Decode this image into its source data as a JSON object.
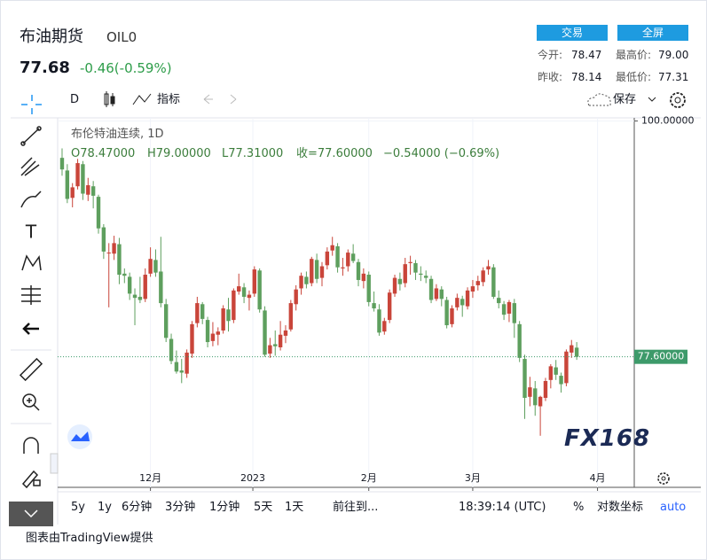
{
  "header": {
    "title": "布油期货",
    "symbol": "OIL0",
    "price": "77.68",
    "change": "-0.46(-0.59%)",
    "buttons": [
      "交易",
      "全屏"
    ],
    "stats": [
      [
        "今开:",
        "78.47"
      ],
      [
        "最高价:",
        "79.00"
      ],
      [
        "昨收:",
        "78.14"
      ],
      [
        "最低价:",
        "77.31"
      ]
    ]
  },
  "toolbar": {
    "interval": "D",
    "indicators": "指标",
    "save": "保存"
  },
  "legend": {
    "title": "布伦特油连续, 1D",
    "open": "O78.47000",
    "high": "H79.00000",
    "low": "L77.31000",
    "close": "收=77.60000",
    "change": "−0.54000 (−0.69%)"
  },
  "chart_data": {
    "type": "candlestick",
    "up_color": "#c9453a",
    "down_color": "#5e9f5e",
    "ylim": [
      65.2,
      100.3
    ],
    "yticks": [
      {
        "value": 100,
        "label": "100.00000"
      }
    ],
    "xlim": [
      -0.85,
      110.07
    ],
    "xticks": [
      {
        "value": 17,
        "label": "12月"
      },
      {
        "value": 36.7,
        "label": "2023"
      },
      {
        "value": 59,
        "label": "2月"
      },
      {
        "value": 79,
        "label": "3月"
      },
      {
        "value": 103,
        "label": "4月"
      }
    ],
    "price_line": {
      "value": 77.6,
      "label": "77.60000",
      "color": "#3d9a6a"
    },
    "ohlc": [
      [
        96.5,
        97.4,
        94.8,
        95.4
      ],
      [
        95.3,
        95.9,
        92.2,
        92.6
      ],
      [
        92.7,
        94.1,
        91.8,
        93.7
      ],
      [
        93.8,
        96.4,
        93.5,
        96.0
      ],
      [
        95.9,
        96.2,
        92.5,
        93.1
      ],
      [
        93.0,
        94.6,
        92.4,
        93.9
      ],
      [
        93.8,
        94.3,
        91.7,
        92.9
      ],
      [
        92.8,
        93.0,
        89.3,
        89.8
      ],
      [
        89.9,
        90.2,
        86.9,
        87.6
      ],
      [
        87.5,
        88.4,
        82.3,
        87.5
      ],
      [
        87.4,
        89.1,
        86.8,
        88.4
      ],
      [
        88.3,
        88.9,
        84.5,
        85.4
      ],
      [
        85.5,
        86.0,
        84.6,
        85.3
      ],
      [
        85.2,
        85.6,
        83.0,
        83.6
      ],
      [
        83.5,
        84.1,
        80.6,
        83.2
      ],
      [
        83.3,
        85.2,
        82.7,
        83.0
      ],
      [
        83.1,
        86.0,
        82.8,
        85.4
      ],
      [
        85.5,
        88.0,
        85.2,
        86.9
      ],
      [
        86.8,
        87.8,
        85.2,
        85.6
      ],
      [
        85.7,
        89.0,
        82.3,
        82.7
      ],
      [
        82.6,
        83.1,
        79.0,
        79.4
      ],
      [
        79.3,
        79.8,
        76.9,
        77.2
      ],
      [
        77.1,
        78.2,
        76.0,
        76.2
      ],
      [
        76.3,
        77.4,
        75.1,
        76.1
      ],
      [
        76.0,
        78.3,
        75.6,
        78.0
      ],
      [
        77.9,
        81.0,
        77.5,
        80.7
      ],
      [
        80.8,
        83.3,
        80.4,
        82.7
      ],
      [
        82.6,
        82.8,
        80.7,
        81.2
      ],
      [
        81.1,
        81.4,
        78.5,
        79.0
      ],
      [
        79.1,
        80.9,
        78.6,
        79.8
      ],
      [
        79.7,
        80.4,
        78.7,
        80.0
      ],
      [
        80.1,
        82.5,
        79.8,
        82.2
      ],
      [
        82.1,
        83.2,
        80.0,
        81.0
      ],
      [
        81.1,
        84.1,
        80.8,
        83.9
      ],
      [
        83.8,
        85.5,
        83.5,
        84.3
      ],
      [
        84.2,
        84.6,
        82.7,
        83.3
      ],
      [
        83.2,
        83.9,
        82.0,
        83.5
      ],
      [
        83.6,
        86.2,
        83.3,
        85.9
      ],
      [
        85.8,
        86.0,
        81.8,
        82.1
      ],
      [
        82.0,
        82.4,
        77.6,
        77.8
      ],
      [
        77.9,
        79.4,
        77.5,
        78.7
      ],
      [
        78.8,
        80.1,
        77.7,
        78.6
      ],
      [
        78.5,
        81.0,
        78.2,
        79.7
      ],
      [
        79.6,
        80.6,
        78.9,
        80.1
      ],
      [
        80.2,
        83.0,
        80.0,
        82.7
      ],
      [
        82.6,
        84.4,
        82.0,
        84.0
      ],
      [
        84.1,
        85.6,
        83.5,
        85.3
      ],
      [
        85.2,
        85.7,
        84.1,
        84.5
      ],
      [
        84.6,
        87.1,
        84.3,
        86.9
      ],
      [
        86.8,
        87.4,
        84.6,
        85.0
      ],
      [
        85.1,
        86.6,
        84.3,
        86.2
      ],
      [
        86.3,
        88.0,
        85.9,
        87.6
      ],
      [
        87.7,
        89.0,
        87.2,
        88.2
      ],
      [
        88.1,
        88.4,
        85.6,
        86.1
      ],
      [
        86.0,
        87.0,
        85.3,
        86.1
      ],
      [
        86.2,
        87.8,
        85.7,
        87.5
      ],
      [
        87.4,
        88.3,
        86.5,
        86.7
      ],
      [
        86.6,
        86.9,
        84.3,
        84.9
      ],
      [
        84.8,
        86.0,
        84.1,
        85.5
      ],
      [
        85.4,
        85.7,
        82.4,
        82.8
      ],
      [
        82.7,
        83.8,
        81.9,
        82.2
      ],
      [
        82.1,
        82.6,
        79.6,
        79.9
      ],
      [
        80.0,
        81.3,
        79.7,
        81.0
      ],
      [
        81.1,
        84.0,
        80.8,
        83.7
      ],
      [
        83.6,
        85.4,
        83.3,
        85.1
      ],
      [
        85.0,
        85.6,
        83.9,
        84.5
      ],
      [
        84.6,
        87.0,
        84.2,
        86.4
      ],
      [
        86.5,
        87.2,
        85.4,
        86.6
      ],
      [
        86.5,
        86.8,
        84.9,
        85.6
      ],
      [
        85.5,
        86.2,
        84.8,
        85.4
      ],
      [
        85.3,
        85.8,
        84.6,
        85.1
      ],
      [
        85.0,
        85.3,
        82.7,
        83.0
      ],
      [
        83.1,
        84.5,
        82.9,
        84.1
      ],
      [
        84.0,
        84.3,
        82.4,
        83.1
      ],
      [
        83.0,
        83.3,
        80.3,
        80.6
      ],
      [
        80.7,
        82.5,
        80.4,
        82.2
      ],
      [
        82.3,
        83.6,
        82.0,
        83.2
      ],
      [
        83.1,
        83.4,
        81.4,
        82.5
      ],
      [
        82.4,
        84.2,
        82.1,
        83.9
      ],
      [
        83.8,
        84.9,
        83.2,
        84.3
      ],
      [
        84.4,
        85.3,
        83.9,
        84.8
      ],
      [
        84.7,
        86.1,
        84.3,
        85.8
      ],
      [
        85.9,
        86.8,
        85.4,
        86.2
      ],
      [
        86.1,
        86.4,
        83.1,
        83.3
      ],
      [
        83.2,
        83.9,
        82.2,
        82.7
      ],
      [
        82.6,
        82.9,
        81.1,
        81.6
      ],
      [
        81.7,
        83.0,
        80.9,
        82.8
      ],
      [
        82.7,
        83.1,
        79.4,
        80.8
      ],
      [
        80.7,
        81.0,
        77.1,
        77.5
      ],
      [
        77.4,
        77.8,
        71.7,
        73.7
      ],
      [
        73.8,
        75.7,
        72.9,
        74.7
      ],
      [
        74.6,
        75.3,
        72.0,
        73.0
      ],
      [
        72.9,
        73.9,
        70.1,
        73.8
      ],
      [
        73.7,
        75.6,
        73.4,
        75.3
      ],
      [
        75.4,
        76.9,
        74.6,
        76.7
      ],
      [
        76.6,
        77.3,
        75.4,
        75.9
      ],
      [
        75.8,
        76.1,
        74.2,
        75.0
      ],
      [
        75.1,
        78.3,
        74.8,
        78.1
      ],
      [
        78.0,
        79.2,
        77.5,
        78.7
      ],
      [
        78.47,
        79.0,
        77.31,
        77.6
      ]
    ]
  },
  "bottom_bar": {
    "ranges": [
      "5y",
      "1y",
      "6分钟",
      "3分钟",
      "1分钟",
      "5天",
      "1天"
    ],
    "goto": "前往到...",
    "time": "18:39:14 (UTC)",
    "percent": "%",
    "log": "对数坐标",
    "auto": "auto"
  },
  "footer": "图表由TradingView提供",
  "watermark": "FX168"
}
